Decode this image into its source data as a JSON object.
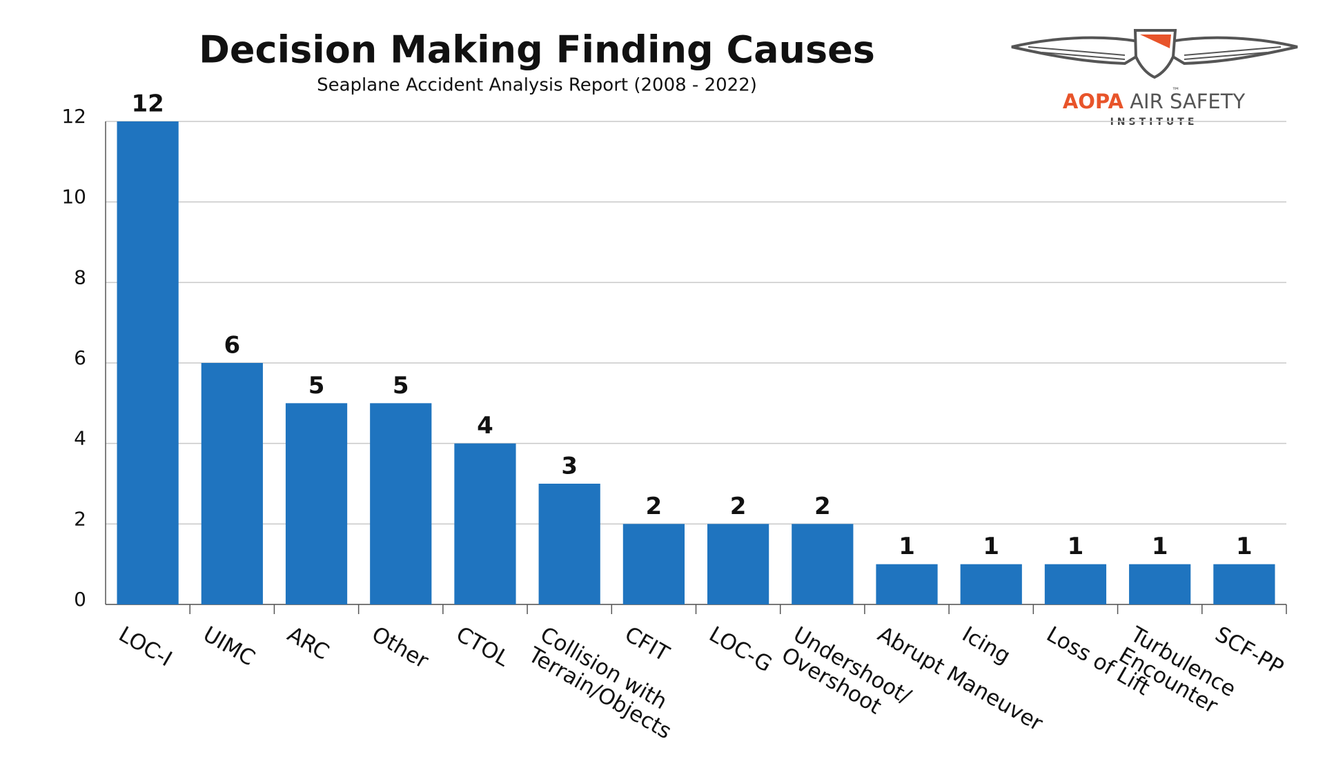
{
  "chart_data": {
    "type": "bar",
    "title": "Decision Making Finding Causes",
    "subtitle": "Seaplane Accident Analysis Report (2008 - 2022)",
    "categories": [
      "LOC-I",
      "UIMC",
      "ARC",
      "Other",
      "CTOL",
      "Collision with\nTerrain/Objects",
      "CFIT",
      "LOC-G",
      "Undershoot/\nOvershoot",
      "Abrupt Maneuver",
      "Icing",
      "Loss of Lift",
      "Turbulence\nEncounter",
      "SCF-PP"
    ],
    "values": [
      12,
      6,
      5,
      5,
      4,
      3,
      2,
      2,
      2,
      1,
      1,
      1,
      1,
      1
    ],
    "color": "#1f74bf",
    "ylim": [
      0,
      12
    ],
    "yticks": [
      0,
      2,
      4,
      6,
      8,
      10,
      12
    ],
    "grid": true
  },
  "logo": {
    "brand": "AOPA",
    "name": "AIR SAFETY",
    "tagline": "INSTITUTE",
    "trademark": "™"
  }
}
